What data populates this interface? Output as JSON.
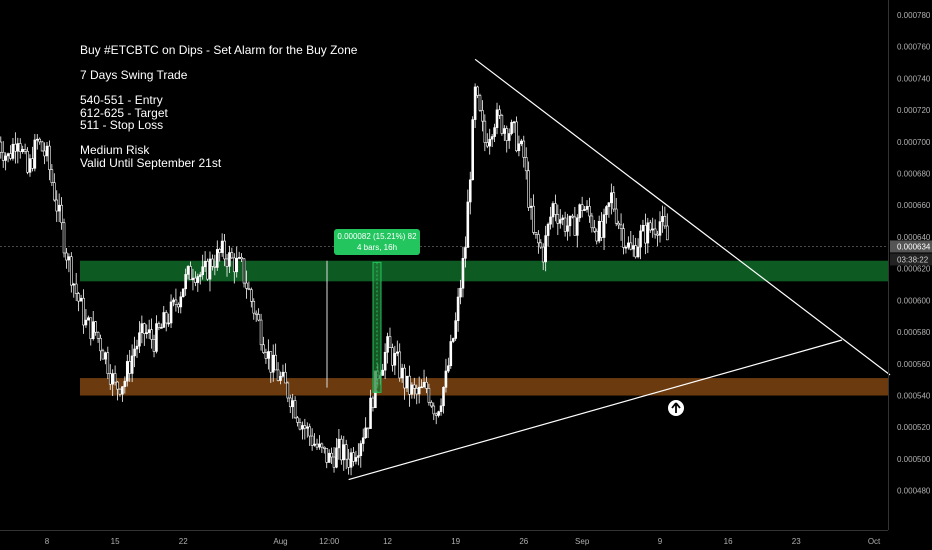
{
  "chart_data": {
    "type": "candlestick",
    "title": "Buy #ETCBTC on Dips - Set Alarm for the Buy Zone",
    "notes": [
      "7 Days Swing Trade",
      "",
      "540-551 - Entry",
      "612-625 - Target",
      "511 - Stop Loss",
      "",
      "Medium Risk",
      "Valid Until September 21st"
    ],
    "y_axis": {
      "ticks": [
        "0.000780",
        "0.000760",
        "0.000740",
        "0.000720",
        "0.000700",
        "0.000680",
        "0.000660",
        "0.000640",
        "0.000620",
        "0.000600",
        "0.000580",
        "0.000560",
        "0.000540",
        "0.000520",
        "0.000500",
        "0.000480"
      ],
      "ylim": [
        0.000476,
        0.000785
      ]
    },
    "x_axis": {
      "ticks": [
        "8",
        "15",
        "22",
        "Aug",
        "12:00",
        "12",
        "19",
        "26",
        "Sep",
        "9",
        "16",
        "23",
        "Oct"
      ]
    },
    "price_series": [
      [
        "Jul 3",
        0.0007
      ],
      [
        "Jul 4",
        0.00069
      ],
      [
        "Jul 5",
        0.000705
      ],
      [
        "Jul 6",
        0.00068
      ],
      [
        "Jul 7",
        0.0007
      ],
      [
        "Jul 8",
        0.00069
      ],
      [
        "Jul 9",
        0.00066
      ],
      [
        "Jul 10",
        0.00063
      ],
      [
        "Jul 11",
        0.000605
      ],
      [
        "Jul 12",
        0.000585
      ],
      [
        "Jul 13",
        0.00058
      ],
      [
        "Jul 14",
        0.000565
      ],
      [
        "Jul 15",
        0.000545
      ],
      [
        "Jul 16",
        0.00055
      ],
      [
        "Jul 17",
        0.00057
      ],
      [
        "Jul 18",
        0.00058
      ],
      [
        "Jul 19",
        0.000575
      ],
      [
        "Jul 20",
        0.000585
      ],
      [
        "Jul 21",
        0.000595
      ],
      [
        "Jul 22",
        0.00061
      ],
      [
        "Jul 23",
        0.00062
      ],
      [
        "Jul 24",
        0.000615
      ],
      [
        "Jul 25",
        0.000625
      ],
      [
        "Jul 26",
        0.00063
      ],
      [
        "Jul 27",
        0.000625
      ],
      [
        "Jul 28",
        0.00062
      ],
      [
        "Jul 29",
        0.0006
      ],
      [
        "Jul 30",
        0.00058
      ],
      [
        "Jul 31",
        0.00056
      ],
      [
        "Aug 1",
        0.00055
      ],
      [
        "Aug 2",
        0.00054
      ],
      [
        "Aug 3",
        0.000525
      ],
      [
        "Aug 4",
        0.000515
      ],
      [
        "Aug 5",
        0.000505
      ],
      [
        "Aug 6",
        0.0005
      ],
      [
        "Aug 7",
        0.000505
      ],
      [
        "Aug 8",
        0.0005
      ],
      [
        "Aug 9",
        0.00051
      ],
      [
        "Aug 10",
        0.000525
      ],
      [
        "Aug 11",
        0.000555
      ],
      [
        "Aug 12",
        0.00057
      ],
      [
        "Aug 13",
        0.00056
      ],
      [
        "Aug 14",
        0.000545
      ],
      [
        "Aug 15",
        0.00054
      ],
      [
        "Aug 16",
        0.000545
      ],
      [
        "Aug 17",
        0.00053
      ],
      [
        "Aug 18",
        0.00055
      ],
      [
        "Aug 19",
        0.000585
      ],
      [
        "Aug 20",
        0.000635
      ],
      [
        "Aug 21",
        0.00073
      ],
      [
        "Aug 22",
        0.0007
      ],
      [
        "Aug 23",
        0.000715
      ],
      [
        "Aug 24",
        0.00071
      ],
      [
        "Aug 25",
        0.000705
      ],
      [
        "Aug 26",
        0.00069
      ],
      [
        "Aug 27",
        0.00064
      ],
      [
        "Aug 28",
        0.00063
      ],
      [
        "Aug 29",
        0.00066
      ],
      [
        "Aug 30",
        0.00065
      ],
      [
        "Aug 31",
        0.000645
      ],
      [
        "Sep 1",
        0.00066
      ],
      [
        "Sep 2",
        0.00065
      ],
      [
        "Sep 3",
        0.00064
      ],
      [
        "Sep 4",
        0.000665
      ],
      [
        "Sep 5",
        0.000645
      ],
      [
        "Sep 6",
        0.00063
      ],
      [
        "Sep 7",
        0.00064
      ],
      [
        "Sep 8",
        0.000645
      ],
      [
        "Sep 9",
        0.00065
      ],
      [
        "Sep 10",
        0.000634
      ]
    ],
    "last_price_label": "0.000634",
    "countdown_label": "03:38:22",
    "zones": [
      {
        "name": "Target",
        "from": 0.000612,
        "to": 0.000625,
        "color": "#0e5a23"
      },
      {
        "name": "Entry",
        "from": 0.00054,
        "to": 0.000551,
        "color": "#6b3a0e"
      }
    ],
    "measure": {
      "label1": "0.000082 (15.21%) 82",
      "label2": "4 bars, 16h",
      "color": "#22c55e"
    },
    "trendlines": [
      "upper-descending",
      "lower-ascending"
    ],
    "grid": false,
    "colors": {
      "background": "#000000",
      "candle": "#ffffff",
      "lines": "#ffffff",
      "axis_text": "#b0b0b0",
      "price_tag": "#555555"
    }
  }
}
